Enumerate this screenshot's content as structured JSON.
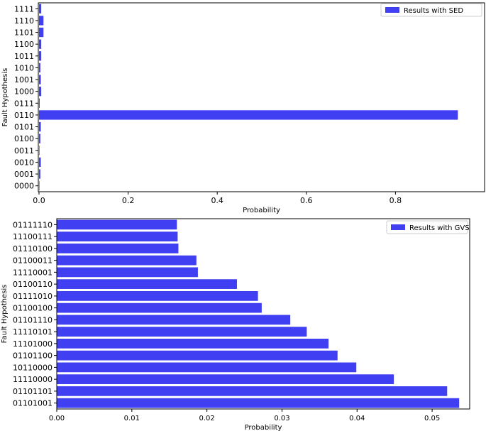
{
  "chart_data": [
    {
      "type": "bar",
      "orientation": "horizontal",
      "categories": [
        "0000",
        "0001",
        "0010",
        "0011",
        "0100",
        "0101",
        "0110",
        "0111",
        "1000",
        "1001",
        "1010",
        "1011",
        "1100",
        "1101",
        "1110",
        "1111"
      ],
      "series": [
        {
          "name": "Results with SED",
          "values": [
            0.0005,
            0.003,
            0.004,
            0.001,
            0.003,
            0.004,
            0.94,
            0.0015,
            0.005,
            0.004,
            0.003,
            0.005,
            0.005,
            0.01,
            0.01,
            0.005
          ]
        }
      ],
      "xlabel": "Probability",
      "ylabel": "Fault Hypothesis",
      "xlim": [
        0,
        1.0
      ],
      "xticks": [
        "0.0",
        "0.2",
        "0.4",
        "0.6",
        "0.8"
      ],
      "xtick_values": [
        0,
        0.2,
        0.4,
        0.6,
        0.8
      ],
      "legend": "top-right",
      "color": "#4040f2"
    },
    {
      "type": "bar",
      "orientation": "horizontal",
      "categories": [
        "01101001",
        "01101101",
        "11110000",
        "10110000",
        "01101100",
        "11101000",
        "11110101",
        "01101110",
        "01100100",
        "01111010",
        "01100110",
        "11110001",
        "01100011",
        "01110100",
        "11100111",
        "01111110"
      ],
      "series": [
        {
          "name": "Results with GVS",
          "values": [
            0.0536,
            0.052,
            0.0449,
            0.0399,
            0.0374,
            0.0362,
            0.0333,
            0.0311,
            0.0273,
            0.0268,
            0.024,
            0.0188,
            0.0186,
            0.0162,
            0.0161,
            0.016
          ]
        }
      ],
      "xlabel": "Probability",
      "ylabel": "Fault Hypothesis",
      "xlim": [
        0,
        0.055
      ],
      "xticks": [
        "0.00",
        "0.01",
        "0.02",
        "0.03",
        "0.04",
        "0.05"
      ],
      "xtick_values": [
        0,
        0.01,
        0.02,
        0.03,
        0.04,
        0.05
      ],
      "legend": "top-right",
      "color": "#4040f2"
    }
  ]
}
